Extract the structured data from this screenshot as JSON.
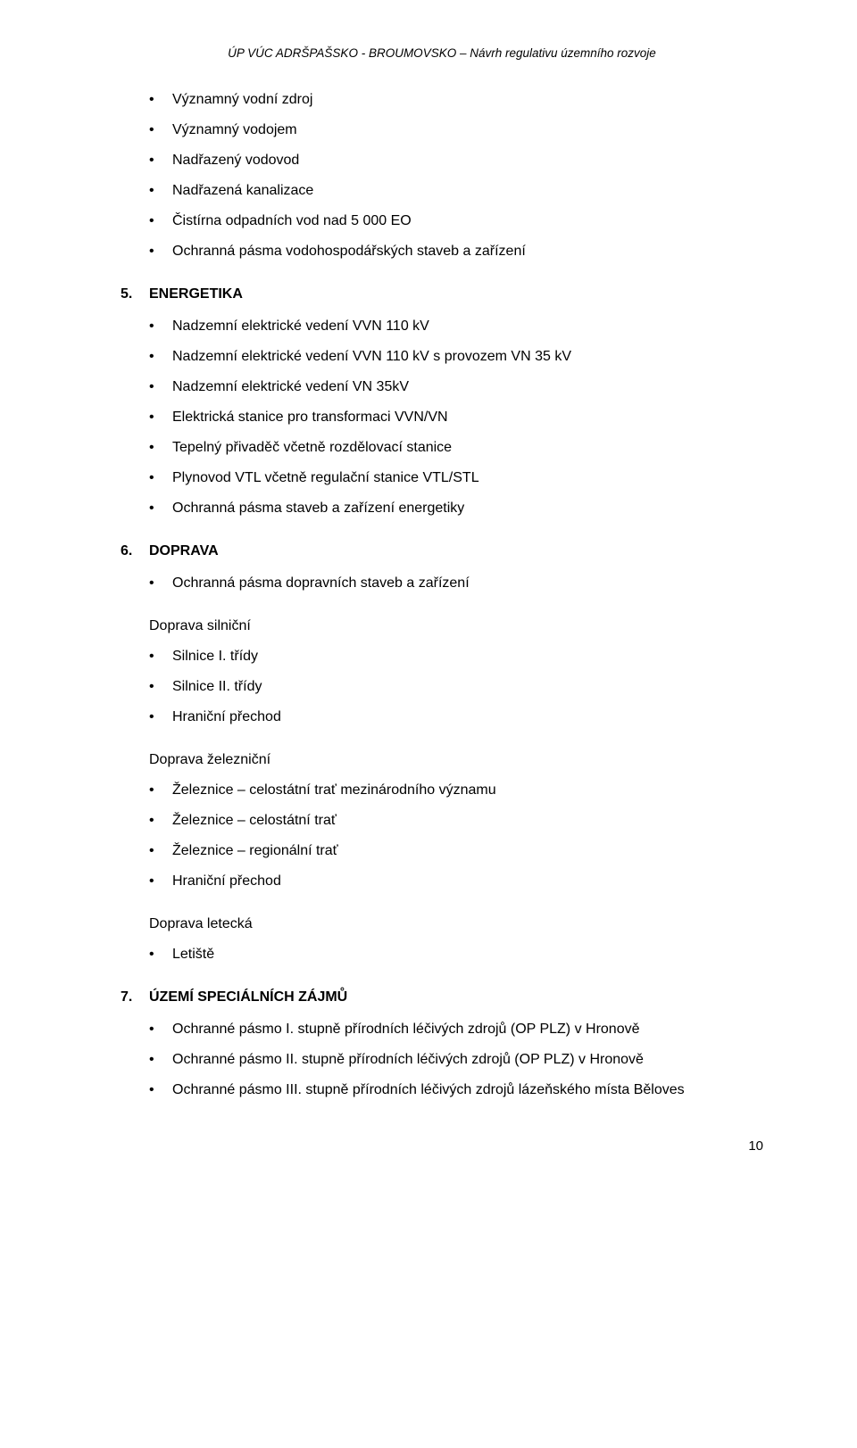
{
  "header": "ÚP VÚC ADRŠPAŠSKO - BROUMOVSKO – Návrh regulativu územního rozvoje",
  "intro_items": [
    "Významný vodní zdroj",
    "Významný vodojem",
    "Nadřazený vodovod",
    "Nadřazená kanalizace",
    "Čistírna odpadních vod nad 5 000 EO",
    "Ochranná pásma vodohospodářských staveb a zařízení"
  ],
  "section5": {
    "num": "5.",
    "title": "ENERGETIKA",
    "items": [
      "Nadzemní elektrické vedení VVN 110 kV",
      "Nadzemní elektrické vedení VVN 110 kV s provozem VN 35 kV",
      "Nadzemní elektrické vedení VN 35kV",
      "Elektrická stanice pro transformaci VVN/VN",
      "Tepelný přivaděč včetně rozdělovací stanice",
      "Plynovod VTL včetně regulační stanice VTL/STL",
      "Ochranná pásma staveb a zařízení energetiky"
    ]
  },
  "section6": {
    "num": "6.",
    "title": "DOPRAVA",
    "first_items": [
      "Ochranná pásma dopravních staveb a zařízení"
    ],
    "road_label": "Doprava silniční",
    "road_items": [
      "Silnice I. třídy",
      "Silnice II. třídy",
      "Hraniční přechod"
    ],
    "rail_label": "Doprava železniční",
    "rail_items": [
      "Železnice – celostátní trať mezinárodního významu",
      "Železnice – celostátní trať",
      "Železnice – regionální trať",
      "Hraniční přechod"
    ],
    "air_label": "Doprava letecká",
    "air_items": [
      "Letiště"
    ]
  },
  "section7": {
    "num": "7.",
    "title": "ÚZEMÍ SPECIÁLNÍCH ZÁJMŮ",
    "items": [
      "Ochranné pásmo I. stupně přírodních léčivých zdrojů (OP PLZ) v Hronově",
      "Ochranné pásmo II. stupně přírodních léčivých zdrojů (OP PLZ) v Hronově",
      "Ochranné pásmo III. stupně přírodních léčivých zdrojů lázeňského místa Běloves"
    ]
  },
  "page_number": "10"
}
